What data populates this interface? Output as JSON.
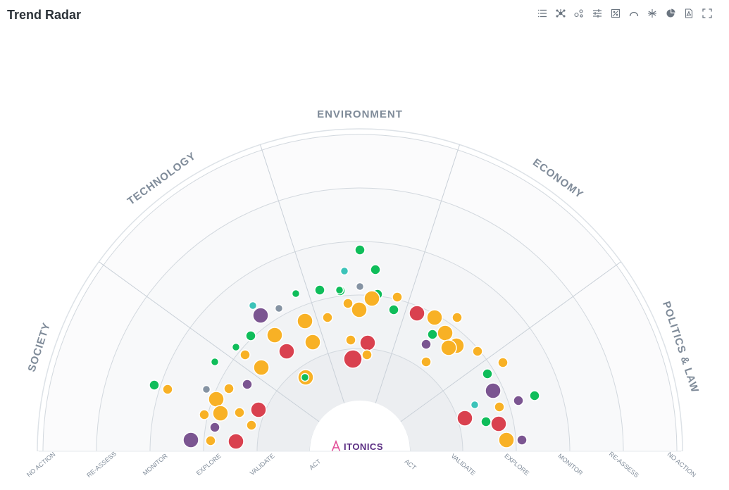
{
  "header": {
    "title": "Trend Radar"
  },
  "toolbar": {
    "buttons": [
      {
        "name": "list-view-button",
        "icon": "list-icon"
      },
      {
        "name": "network-view-button",
        "icon": "network-icon"
      },
      {
        "name": "cluster-view-button",
        "icon": "cluster-icon"
      },
      {
        "name": "filter-settings-button",
        "icon": "sliders-icon"
      },
      {
        "name": "matrix-view-button",
        "icon": "matrix-icon"
      },
      {
        "name": "radar-view-button",
        "icon": "arc-icon"
      },
      {
        "name": "snowflake-view-button",
        "icon": "snowflake-icon"
      },
      {
        "name": "pie-view-button",
        "icon": "pie-chart-icon"
      },
      {
        "name": "export-pdf-button",
        "icon": "pdf-icon"
      },
      {
        "name": "fullscreen-button",
        "icon": "fullscreen-icon"
      }
    ]
  },
  "radar": {
    "segments": [
      "SOCIETY",
      "TECHNOLOGY",
      "ENVIRONMENT",
      "ECONOMY",
      "POLITICS & LAW"
    ],
    "rings_left": [
      "NO ACTION",
      "RE-ASSESS",
      "MONITOR",
      "EXPLORE",
      "VALIDATE",
      "ACT"
    ],
    "rings_right": [
      "ACT",
      "VALIDATE",
      "EXPLORE",
      "MONITOR",
      "RE-ASSESS",
      "NO ACTION"
    ],
    "logo_text": "ITONICS",
    "colors": {
      "green": "#0fbd5a",
      "yellow": "#f8b125",
      "red": "#d9414f",
      "purple": "#7b5591",
      "teal": "#3cc3b9",
      "gray": "#8593a3"
    },
    "trends": [
      {
        "color": "green",
        "size": "s"
      },
      {
        "color": "green",
        "size": "s"
      },
      {
        "color": "teal",
        "size": "xs"
      },
      {
        "color": "green",
        "size": "s"
      },
      {
        "color": "gray",
        "size": "xs"
      },
      {
        "color": "green",
        "size": "s"
      },
      {
        "color": "green",
        "size": "s"
      },
      {
        "color": "green",
        "size": "xs"
      },
      {
        "color": "yellow",
        "size": "m"
      },
      {
        "color": "yellow",
        "size": "s"
      },
      {
        "color": "yellow",
        "size": "s"
      },
      {
        "color": "yellow",
        "size": "m"
      },
      {
        "color": "green",
        "size": "s"
      },
      {
        "color": "yellow",
        "size": "s"
      },
      {
        "color": "teal",
        "size": "xs"
      },
      {
        "color": "gray",
        "size": "xs"
      },
      {
        "color": "purple",
        "size": "m"
      },
      {
        "color": "yellow",
        "size": "m"
      },
      {
        "color": "yellow",
        "size": "m"
      },
      {
        "color": "yellow",
        "size": "s"
      },
      {
        "color": "red",
        "size": "m"
      },
      {
        "color": "yellow",
        "size": "m"
      },
      {
        "color": "red",
        "size": "m"
      },
      {
        "color": "green",
        "size": "xs"
      },
      {
        "color": "green",
        "size": "s"
      },
      {
        "color": "yellow",
        "size": "s"
      },
      {
        "color": "yellow",
        "size": "m"
      },
      {
        "color": "red",
        "size": "l"
      },
      {
        "color": "yellow",
        "size": "s"
      },
      {
        "color": "green",
        "size": "xs"
      },
      {
        "color": "green",
        "size": "s"
      },
      {
        "color": "gray",
        "size": "xs"
      },
      {
        "color": "purple",
        "size": "s"
      },
      {
        "color": "yellow",
        "size": "m"
      },
      {
        "color": "yellow",
        "size": "s"
      },
      {
        "color": "yellow",
        "size": "m"
      },
      {
        "color": "red",
        "size": "m"
      },
      {
        "color": "yellow",
        "size": "s"
      },
      {
        "color": "yellow",
        "size": "s"
      },
      {
        "color": "purple",
        "size": "s"
      },
      {
        "color": "yellow",
        "size": "s"
      },
      {
        "color": "purple",
        "size": "m"
      },
      {
        "color": "red",
        "size": "m"
      },
      {
        "color": "yellow",
        "size": "s"
      },
      {
        "color": "yellow",
        "size": "m"
      },
      {
        "color": "yellow",
        "size": "m"
      },
      {
        "color": "red",
        "size": "m"
      },
      {
        "color": "yellow",
        "size": "s"
      },
      {
        "color": "green",
        "size": "s"
      },
      {
        "color": "yellow",
        "size": "m"
      },
      {
        "color": "purple",
        "size": "s"
      },
      {
        "color": "yellow",
        "size": "m"
      },
      {
        "color": "yellow",
        "size": "m"
      },
      {
        "color": "yellow",
        "size": "s"
      },
      {
        "color": "yellow",
        "size": "s"
      },
      {
        "color": "green",
        "size": "s"
      },
      {
        "color": "yellow",
        "size": "s"
      },
      {
        "color": "purple",
        "size": "m"
      },
      {
        "color": "yellow",
        "size": "s"
      },
      {
        "color": "purple",
        "size": "s"
      },
      {
        "color": "green",
        "size": "s"
      },
      {
        "color": "teal",
        "size": "xs"
      },
      {
        "color": "red",
        "size": "m"
      },
      {
        "color": "green",
        "size": "s"
      },
      {
        "color": "red",
        "size": "m"
      },
      {
        "color": "yellow",
        "size": "m"
      },
      {
        "color": "purple",
        "size": "s"
      },
      {
        "color": "yellow",
        "size": "s"
      },
      {
        "color": "green",
        "size": "xs"
      },
      {
        "color": "green",
        "size": "xs"
      }
    ]
  }
}
